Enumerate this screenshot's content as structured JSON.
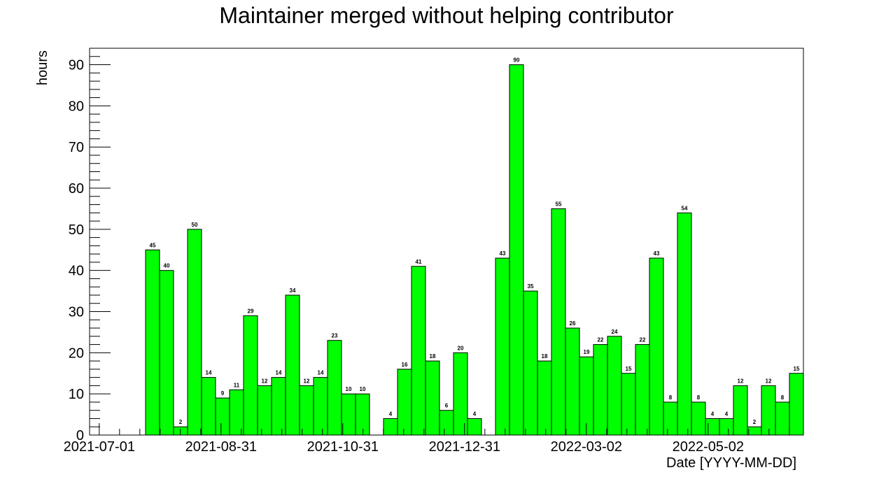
{
  "chart_data": {
    "type": "bar",
    "title": "Maintainer merged without helping contributor",
    "xlabel": "Date [YYYY-MM-DD]",
    "ylabel": "hours",
    "ylim": [
      0,
      94
    ],
    "yticks": [
      0,
      10,
      20,
      30,
      40,
      50,
      60,
      70,
      80,
      90
    ],
    "xtick_labels": [
      "2021-07-01",
      "2021-08-31",
      "2021-10-31",
      "2021-12-31",
      "2022-03-02",
      "2022-05-02"
    ],
    "values": [
      0,
      0,
      0,
      0,
      45,
      40,
      2,
      50,
      14,
      9,
      11,
      29,
      12,
      14,
      34,
      12,
      14,
      23,
      10,
      10,
      0,
      4,
      16,
      41,
      18,
      6,
      20,
      4,
      0,
      43,
      90,
      35,
      18,
      55,
      26,
      19,
      22,
      24,
      15,
      22,
      43,
      8,
      54,
      8,
      4,
      4,
      12,
      2,
      12,
      8,
      15
    ],
    "value_labels": [
      "",
      "",
      "",
      "",
      "45",
      "40",
      "2",
      "50",
      "14",
      "9",
      "11",
      "29",
      "12",
      "14",
      "34",
      "12",
      "14",
      "23",
      "10",
      "10",
      "",
      "4",
      "16",
      "41",
      "18",
      "6",
      "20",
      "4",
      "",
      "43",
      "90",
      "35",
      "18",
      "55",
      "26",
      "19",
      "22",
      "24",
      "15",
      "22",
      "43",
      "8",
      "54",
      "8",
      "4",
      "4",
      "12",
      "2",
      "12",
      "8",
      "15"
    ],
    "bar_color": "#00ff00",
    "edge_color": "#000000",
    "grid": false,
    "legend": "none"
  }
}
